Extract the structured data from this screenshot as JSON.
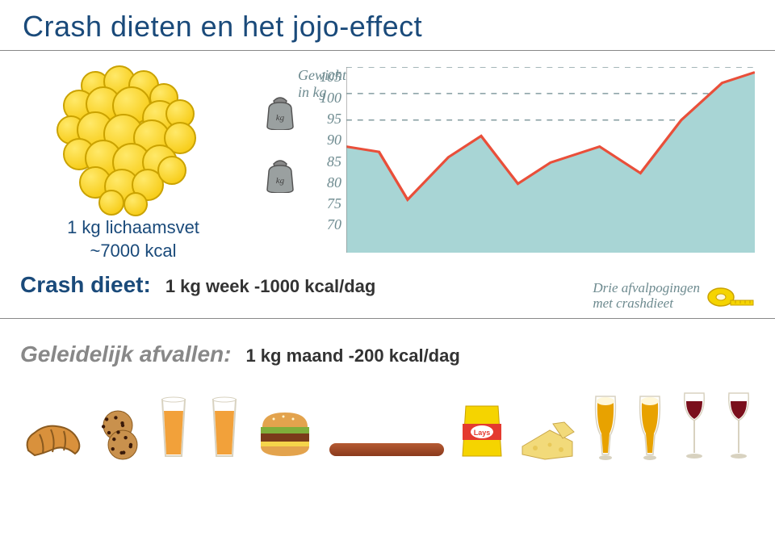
{
  "title": "Crash dieten en het jojo-effect",
  "fat": {
    "line1": "1 kg lichaamsvet",
    "line2": "~7000 kcal",
    "bubble_fill": "#f5c400",
    "bubble_hi": "#ffe96a",
    "bubble_stroke": "#caa200"
  },
  "chart": {
    "y_title": "Gewicht",
    "y_sub": "in kg",
    "y_ticks": [
      "105",
      "100",
      "95",
      "90",
      "85",
      "80",
      "75",
      "70"
    ],
    "y_min": 70,
    "y_max": 105,
    "area_color": "#a8d5d5",
    "line_color": "#e94f3a",
    "grid_color": "#6d8a8f",
    "series_x": [
      0,
      0.08,
      0.15,
      0.25,
      0.33,
      0.42,
      0.5,
      0.62,
      0.72,
      0.82,
      0.92,
      1.0
    ],
    "series_y": [
      90,
      89,
      80,
      88,
      92,
      83,
      87,
      90,
      85,
      95,
      102,
      104
    ]
  },
  "crash": {
    "label": "Crash dieet:",
    "value": "1 kg week -1000 kcal/dag",
    "note_l1": "Drie afvalpogingen",
    "note_l2": "met crashdieet"
  },
  "gradual": {
    "label": "Geleidelijk afvallen:",
    "value": "1 kg maand -200 kcal/dag"
  },
  "colors": {
    "title": "#1a4a7a",
    "rule": "#888888",
    "chart_text": "#6d8a8f"
  },
  "food": {
    "croissant": "#d9913c",
    "cookie": "#c9914d",
    "juice": "#f2a13a",
    "burger_bun": "#e3a34d",
    "burger_meat": "#7a3b1a",
    "burger_lettuce": "#7fae3a",
    "sausage_a": "#8a3a1c",
    "sausage_b": "#b55a33",
    "chips_bag": "#f5d400",
    "chips_red": "#e43b2f",
    "cheese": "#f2da7a",
    "beer": "#e8a200",
    "beer_foam": "#fff7d8",
    "wine": "#7a0f1c",
    "glass": "#d8d2c0"
  }
}
